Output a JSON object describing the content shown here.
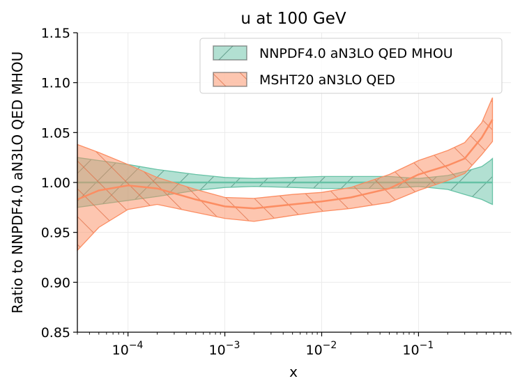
{
  "chart_data": {
    "type": "area",
    "title": "u at 100 GeV",
    "xlabel": "x",
    "ylabel": "Ratio to NNPDF4.0 aN3LO QED MHOU",
    "xscale": "log",
    "xlim": [
      3e-05,
      0.9
    ],
    "ylim": [
      0.85,
      1.15
    ],
    "grid": true,
    "legend_position": "top-right",
    "y_ticks": [
      0.85,
      0.9,
      0.95,
      1.0,
      1.05,
      1.1,
      1.15
    ],
    "y_tick_labels": [
      "0.85",
      "0.90",
      "0.95",
      "1.00",
      "1.05",
      "1.10",
      "1.15"
    ],
    "x_ticks": [
      0.0001,
      0.001,
      0.01,
      0.1
    ],
    "x_tick_labels": [
      {
        "base": "10",
        "exp": "−4"
      },
      {
        "base": "10",
        "exp": "−3"
      },
      {
        "base": "10",
        "exp": "−2"
      },
      {
        "base": "10",
        "exp": "−1"
      }
    ],
    "series": [
      {
        "name": "NNPDF4.0 aN3LO QED MHOU",
        "fill_color": "#66c2a5",
        "line_color": "#66c2a5",
        "hatch": "//",
        "x": [
          3e-05,
          5e-05,
          0.0001,
          0.0002,
          0.0005,
          0.001,
          0.002,
          0.005,
          0.01,
          0.02,
          0.05,
          0.1,
          0.2,
          0.3,
          0.45,
          0.55,
          0.58
        ],
        "central": [
          1.0,
          1.0,
          1.0,
          1.0,
          1.0,
          1.0,
          1.0,
          1.0,
          1.0,
          1.0,
          1.0,
          1.0,
          1.0,
          1.0,
          1.0,
          1.0,
          1.0
        ],
        "lower": [
          0.975,
          0.978,
          0.982,
          0.986,
          0.992,
          0.995,
          0.996,
          0.995,
          0.994,
          0.994,
          0.994,
          0.996,
          0.993,
          0.988,
          0.983,
          0.979,
          0.978
        ],
        "upper": [
          1.025,
          1.022,
          1.018,
          1.013,
          1.008,
          1.005,
          1.004,
          1.005,
          1.006,
          1.006,
          1.006,
          1.004,
          1.007,
          1.011,
          1.016,
          1.022,
          1.024
        ]
      },
      {
        "name": "MSHT20 aN3LO QED",
        "fill_color": "#fc8d62",
        "line_color": "#fc8d62",
        "hatch": "\\\\",
        "x": [
          3e-05,
          5e-05,
          0.0001,
          0.0002,
          0.0005,
          0.001,
          0.002,
          0.005,
          0.01,
          0.02,
          0.05,
          0.1,
          0.2,
          0.3,
          0.45,
          0.58
        ],
        "central": [
          0.983,
          0.992,
          0.997,
          0.994,
          0.983,
          0.976,
          0.974,
          0.978,
          0.981,
          0.985,
          0.994,
          1.008,
          1.017,
          1.024,
          1.045,
          1.063
        ],
        "lower": [
          0.932,
          0.955,
          0.973,
          0.978,
          0.97,
          0.964,
          0.961,
          0.967,
          0.971,
          0.974,
          0.98,
          0.992,
          1.002,
          1.009,
          1.028,
          1.041
        ],
        "upper": [
          1.038,
          1.03,
          1.018,
          1.005,
          0.993,
          0.985,
          0.984,
          0.988,
          0.99,
          0.995,
          1.008,
          1.022,
          1.032,
          1.04,
          1.06,
          1.085
        ]
      }
    ]
  }
}
